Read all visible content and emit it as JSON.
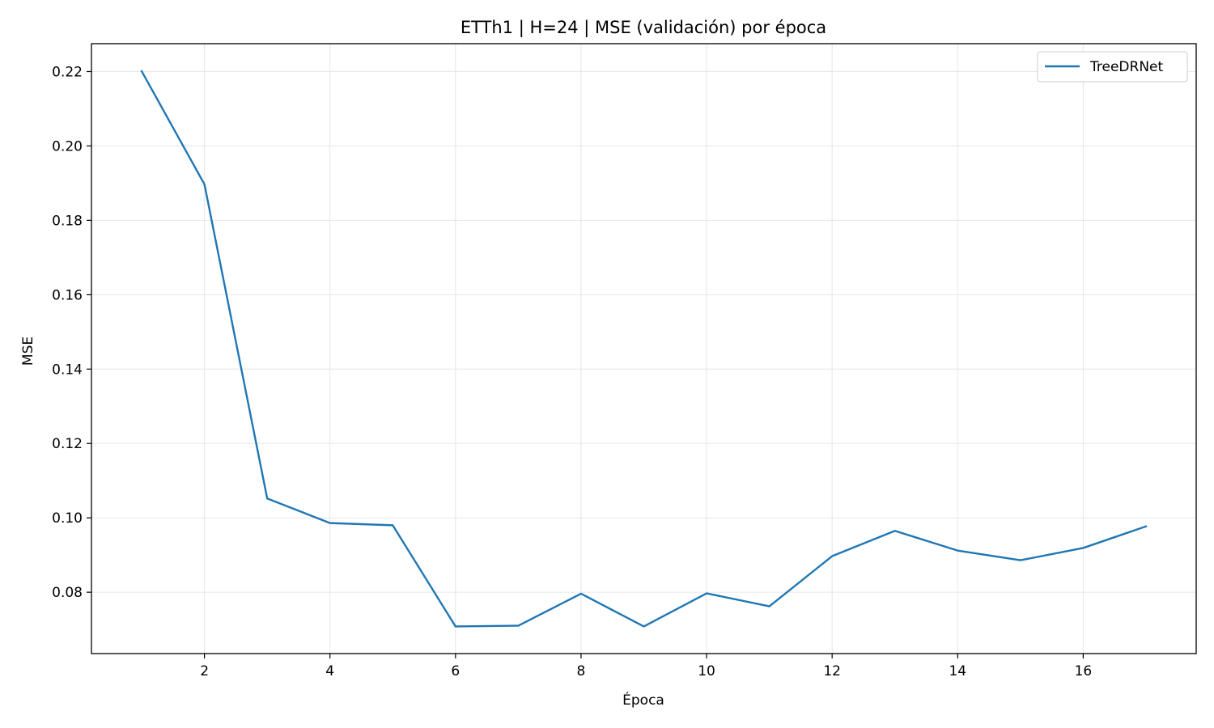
{
  "chart_data": {
    "type": "line",
    "title": "ETTh1 | H=24 | MSE (validación) por época",
    "xlabel": "Época",
    "ylabel": "MSE",
    "xlim": [
      0.2,
      17.8
    ],
    "ylim": [
      0.0635,
      0.2275
    ],
    "xticks": [
      2,
      4,
      6,
      8,
      10,
      12,
      14,
      16
    ],
    "yticks": [
      0.08,
      0.1,
      0.12,
      0.14,
      0.16,
      0.18,
      0.2,
      0.22
    ],
    "ytick_labels": [
      "0.08",
      "0.10",
      "0.12",
      "0.14",
      "0.16",
      "0.18",
      "0.20",
      "0.22"
    ],
    "grid": true,
    "legend_position": "top-right",
    "series": [
      {
        "name": "TreeDRNet",
        "color": "#1f77b4",
        "x": [
          1,
          2,
          3,
          4,
          5,
          6,
          7,
          8,
          9,
          10,
          11,
          12,
          13,
          14,
          15,
          16,
          17
        ],
        "y": [
          0.2201,
          0.1897,
          0.1052,
          0.0986,
          0.098,
          0.0708,
          0.071,
          0.0796,
          0.0708,
          0.0797,
          0.0762,
          0.0897,
          0.0965,
          0.0912,
          0.0886,
          0.0919,
          0.0977
        ]
      }
    ]
  }
}
